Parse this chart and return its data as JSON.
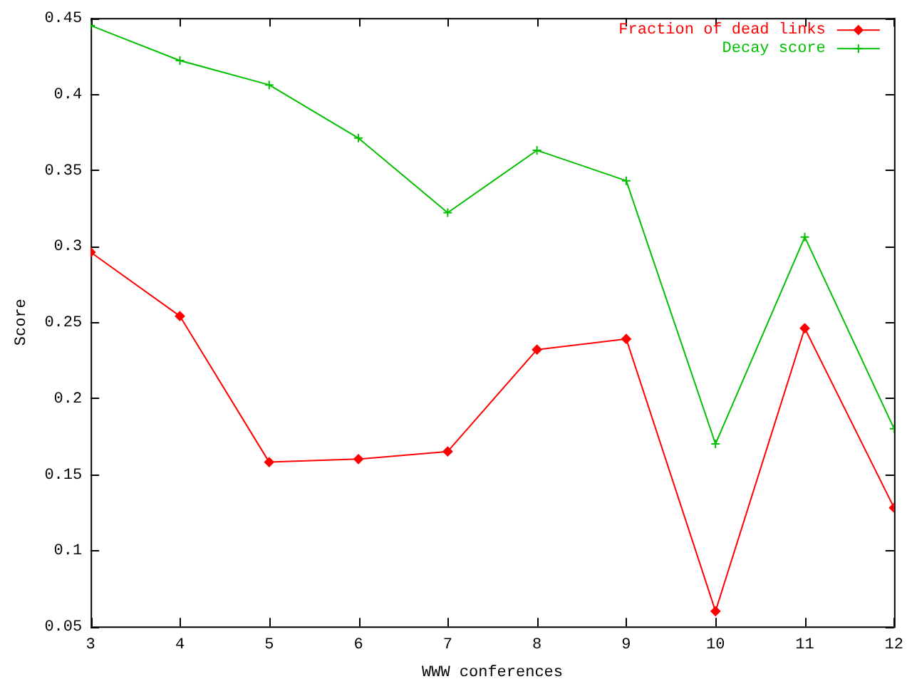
{
  "chart_data": {
    "type": "line",
    "xlabel": "WWW conferences",
    "ylabel": "Score",
    "x": [
      3,
      4,
      5,
      6,
      7,
      8,
      9,
      10,
      11,
      12
    ],
    "xlim": [
      3,
      12
    ],
    "xticks": [
      3,
      4,
      5,
      6,
      7,
      8,
      9,
      10,
      11,
      12
    ],
    "ylim": [
      0.05,
      0.45
    ],
    "yticks": [
      0.05,
      0.1,
      0.15,
      0.2,
      0.25,
      0.3,
      0.35,
      0.4,
      0.45
    ],
    "grid": false,
    "legend": "top right",
    "series": [
      {
        "name": "Fraction of dead links",
        "color": "#ff0000",
        "marker": "diamond",
        "values": [
          0.296,
          0.254,
          0.158,
          0.16,
          0.165,
          0.232,
          0.239,
          0.06,
          0.246,
          0.128
        ]
      },
      {
        "name": "Decay score",
        "color": "#00c000",
        "marker": "cross",
        "values": [
          0.445,
          0.422,
          0.406,
          0.371,
          0.322,
          0.363,
          0.343,
          0.17,
          0.306,
          0.18
        ]
      }
    ]
  }
}
